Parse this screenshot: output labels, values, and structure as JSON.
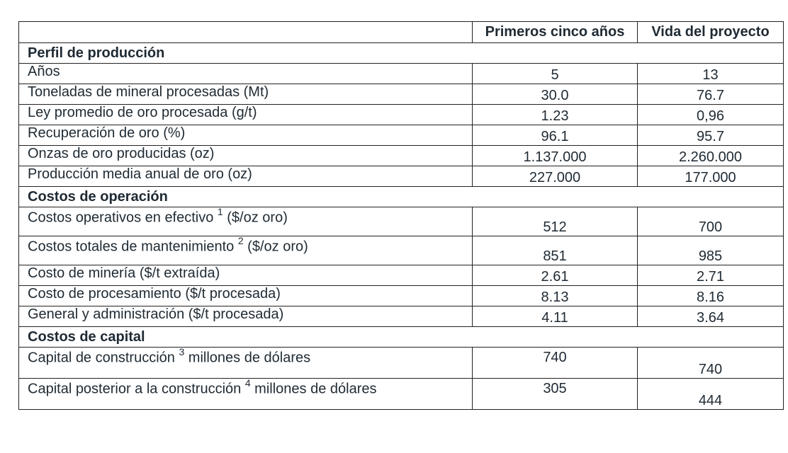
{
  "headers": [
    "",
    "Primeros cinco años",
    "Vida del proyecto"
  ],
  "sections": [
    {
      "title": "Perfil de producción",
      "rows": [
        {
          "label": "Años",
          "sup": "",
          "suffix": "",
          "five": "5",
          "life": "13"
        },
        {
          "label": "Toneladas de mineral procesadas (Mt)",
          "sup": "",
          "suffix": "",
          "five": "30.0",
          "life": "76.7"
        },
        {
          "label": "Ley promedio de oro procesada (g/t)",
          "sup": "",
          "suffix": "",
          "five": "1.23",
          "life": "0,96"
        },
        {
          "label": "Recuperación de oro (%)",
          "sup": "",
          "suffix": "",
          "five": "96.1",
          "life": "95.7"
        },
        {
          "label": "Onzas de oro producidas (oz)",
          "sup": "",
          "suffix": "",
          "five": "1.137.000",
          "life": "2.260.000"
        },
        {
          "label": "Producción media anual de oro (oz)",
          "sup": "",
          "suffix": "",
          "five": "227.000",
          "life": "177.000"
        }
      ]
    },
    {
      "title": "Costos de operación",
      "rows": [
        {
          "label": "Costos operativos en efectivo ",
          "sup": "1",
          "suffix": " ($/oz oro)",
          "five": "512",
          "life": "700"
        },
        {
          "label": "Costos totales de mantenimiento ",
          "sup": "2",
          "suffix": " ($/oz oro)",
          "five": "851",
          "life": "985"
        },
        {
          "label": "Costo de minería ($/t extraída)",
          "sup": "",
          "suffix": "",
          "five": "2.61",
          "life": "2.71"
        },
        {
          "label": "Costo de procesamiento ($/t procesada)",
          "sup": "",
          "suffix": "",
          "five": "8.13",
          "life": "8.16"
        },
        {
          "label": "General y administración ($/t procesada)",
          "sup": "",
          "suffix": "",
          "five": "4.11",
          "life": "3.64"
        }
      ]
    },
    {
      "title": "Costos de capital",
      "rows": [
        {
          "label": "Capital de construcción ",
          "sup": "3",
          "suffix": " millones de dólares",
          "five": "740",
          "life": "740"
        },
        {
          "label": "Capital posterior a la construcción ",
          "sup": "4",
          "suffix": " millones de dólares",
          "five": "305",
          "life": "444"
        }
      ]
    }
  ]
}
